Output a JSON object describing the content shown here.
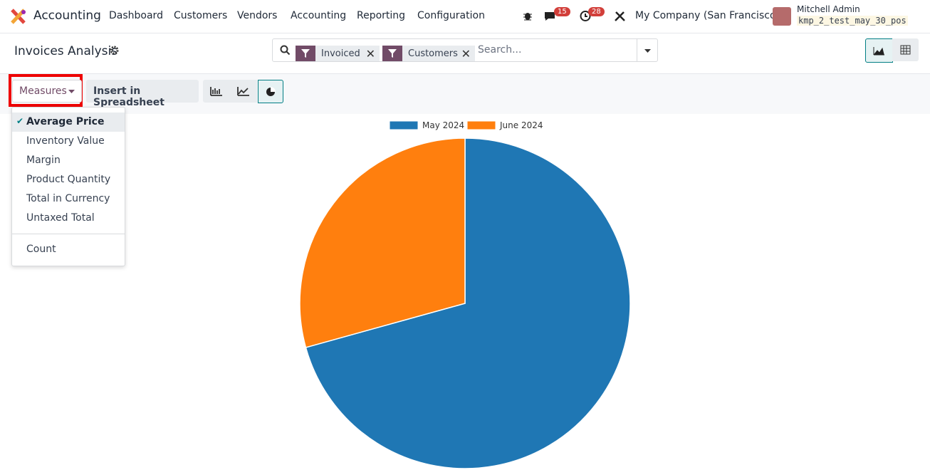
{
  "navbar": {
    "app": "Accounting",
    "menu": [
      "Dashboard",
      "Customers",
      "Vendors",
      "Accounting",
      "Reporting",
      "Configuration"
    ],
    "messages_count": 15,
    "activities_count": 28,
    "company": "My Company (San Francisco)",
    "user": "Mitchell Admin",
    "database": "kmp_2_test_may_30_pos"
  },
  "control_panel": {
    "title": "Invoices Analysis",
    "facets": [
      "Invoiced",
      "Customers"
    ],
    "search_placeholder": "Search...",
    "measures_button": "Measures",
    "spreadsheet_button": "Insert in Spreadsheet"
  },
  "measures_menu": {
    "items": [
      "Average Price",
      "Inventory Value",
      "Margin",
      "Product Quantity",
      "Total in Currency",
      "Untaxed Total"
    ],
    "selected": 0,
    "count": "Count"
  },
  "chart_data": {
    "type": "pie",
    "categories": [
      "May 2024",
      "June 2024"
    ],
    "values": [
      70.7,
      29.3
    ],
    "colors": [
      "#1f77b4",
      "#ff7f0e"
    ]
  }
}
